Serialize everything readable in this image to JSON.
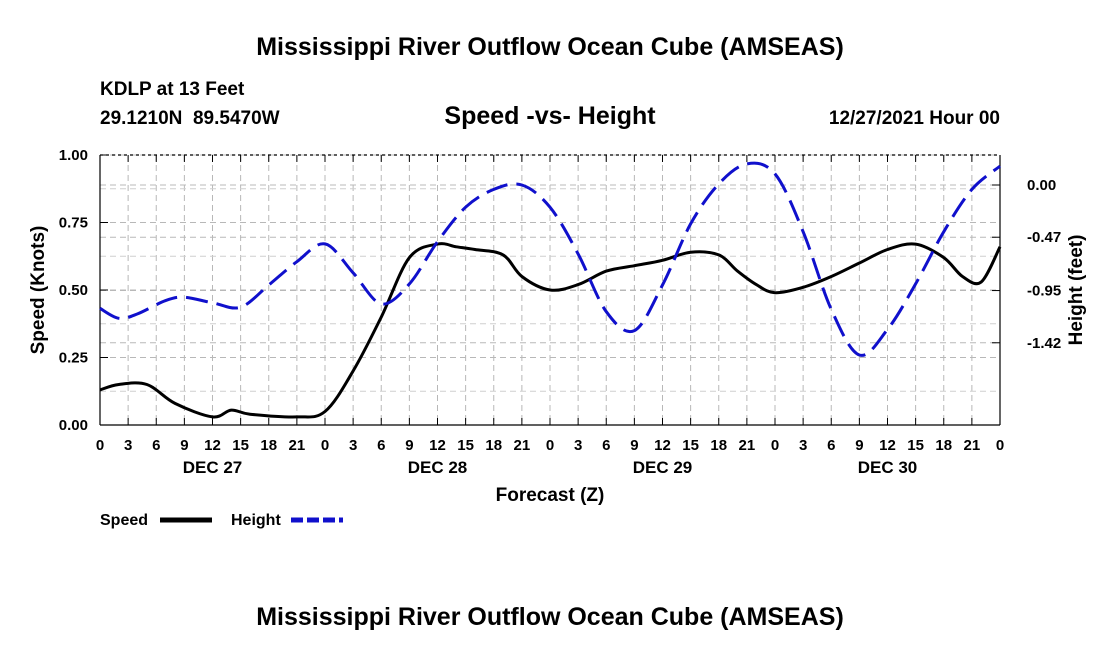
{
  "chart_data": {
    "type": "line",
    "title": "Mississippi River Outflow Ocean Cube (AMSEAS)",
    "bottom_title": "Mississippi River Outflow Ocean Cube (AMSEAS)",
    "station": "KDLP at 13 Feet",
    "coordinates": "29.1210N  89.5470W",
    "subtitle": "Speed -vs- Height",
    "datetime": "12/27/2021 Hour 00",
    "xlabel": "Forecast (Z)",
    "ylabel_left": "Speed (Knots)",
    "ylabel_right": "Height (feet)",
    "ylim_left": [
      0,
      1
    ],
    "ylim_right": [
      -2.16,
      0.27
    ],
    "xlim": [
      0,
      96
    ],
    "grid": true,
    "x_tick_labels": [
      "0",
      "3",
      "6",
      "9",
      "12",
      "15",
      "18",
      "21",
      "0",
      "3",
      "6",
      "9",
      "12",
      "15",
      "18",
      "21",
      "0",
      "3",
      "6",
      "9",
      "12",
      "15",
      "18",
      "21",
      "0",
      "3",
      "6",
      "9",
      "12",
      "15",
      "18",
      "21",
      "0"
    ],
    "day_labels": [
      "DEC 27",
      "DEC 28",
      "DEC 29",
      "DEC 30"
    ],
    "y_left_ticks": [
      "0.00",
      "0.25",
      "0.50",
      "0.75",
      "1.00"
    ],
    "y_left_values": [
      0,
      0.25,
      0.5,
      0.75,
      1.0
    ],
    "y_right_ticks": [
      "-1.42",
      "-0.95",
      "-0.47",
      "0.00"
    ],
    "y_right_values": [
      -1.42,
      -0.95,
      -0.47,
      0.0
    ],
    "series": [
      {
        "name": "Speed",
        "color": "#000000",
        "dash": "solid",
        "axis": "left",
        "hours": [
          0,
          2,
          5,
          8,
          12,
          14,
          16,
          21,
          24,
          27,
          30,
          33,
          36,
          38,
          40,
          43,
          45,
          48,
          51,
          54,
          57,
          60,
          63,
          66,
          68,
          70,
          72,
          75,
          78,
          81,
          84,
          87,
          90,
          92,
          94,
          96
        ],
        "values": [
          0.13,
          0.15,
          0.15,
          0.08,
          0.03,
          0.055,
          0.04,
          0.03,
          0.05,
          0.2,
          0.4,
          0.62,
          0.67,
          0.66,
          0.65,
          0.63,
          0.55,
          0.5,
          0.52,
          0.57,
          0.59,
          0.61,
          0.64,
          0.63,
          0.57,
          0.52,
          0.49,
          0.51,
          0.55,
          0.6,
          0.65,
          0.67,
          0.62,
          0.55,
          0.53,
          0.66
        ]
      },
      {
        "name": "Height",
        "color": "#1010cc",
        "dash": "dashed",
        "axis": "right",
        "hours": [
          0,
          2,
          4,
          7,
          9,
          12,
          15,
          18,
          21,
          24,
          27,
          30,
          33,
          36,
          39,
          42,
          45,
          48,
          51,
          54,
          57,
          60,
          63,
          66,
          69,
          72,
          75,
          78,
          81,
          84,
          87,
          90,
          93,
          96
        ],
        "values": [
          -1.11,
          -1.2,
          -1.16,
          -1.04,
          -1.01,
          -1.06,
          -1.1,
          -0.9,
          -0.69,
          -0.53,
          -0.79,
          -1.07,
          -0.89,
          -0.51,
          -0.2,
          -0.04,
          0.0,
          -0.2,
          -0.62,
          -1.14,
          -1.31,
          -0.9,
          -0.35,
          0.01,
          0.19,
          0.1,
          -0.42,
          -1.12,
          -1.53,
          -1.3,
          -0.89,
          -0.42,
          -0.04,
          0.17
        ]
      }
    ],
    "legend": [
      {
        "label": "Speed",
        "color": "#000000",
        "dash": "solid"
      },
      {
        "label": "Height",
        "color": "#1010cc",
        "dash": "dashed"
      }
    ],
    "legend_position": "bottom-left"
  }
}
